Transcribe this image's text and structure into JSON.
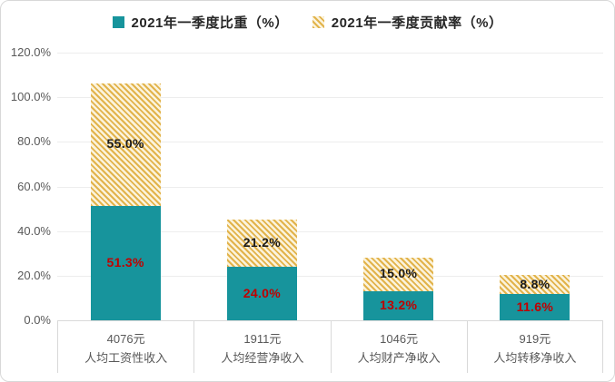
{
  "chart_data": {
    "type": "bar",
    "stacked": true,
    "legend_position": "top",
    "grid": true,
    "ylim": [
      0,
      120
    ],
    "y_ticks": [
      "120.0%",
      "100.0%",
      "80.0%",
      "60.0%",
      "40.0%",
      "20.0%",
      "0.0%"
    ],
    "legend": [
      {
        "label": "2021年一季度比重（%）",
        "pattern": "solid",
        "color": "#17949C"
      },
      {
        "label": "2021年一季度贡献率（%）",
        "pattern": "diagonal-hatch",
        "color": "#E2B34B"
      }
    ],
    "categories": [
      {
        "value_label": "4076元",
        "name": "人均工资性收入"
      },
      {
        "value_label": "1911元",
        "name": "人均经营净收入"
      },
      {
        "value_label": "1046元",
        "name": "人均财产净收入"
      },
      {
        "value_label": "919元",
        "name": "人均转移净收入"
      }
    ],
    "series": [
      {
        "name": "2021年一季度比重（%）",
        "pattern": "solid",
        "values": [
          51.3,
          24.0,
          13.2,
          11.6
        ],
        "label_color": "#C00000"
      },
      {
        "name": "2021年一季度贡献率（%）",
        "pattern": "diagonal-hatch",
        "values": [
          55.0,
          21.2,
          15.0,
          8.8
        ],
        "label_color": "#1A1A1A"
      }
    ]
  },
  "colors": {
    "bar_solid": "#17949C",
    "hatch_stripe": "#E2B34B",
    "hatch_gap": "#FBF3DC",
    "axis_text": "#595959",
    "gridline": "#EDEDED",
    "baseline": "#D9D9D9",
    "share_label": "#C00000",
    "contribution_label": "#1A1A1A",
    "legend_text": "#262626"
  }
}
